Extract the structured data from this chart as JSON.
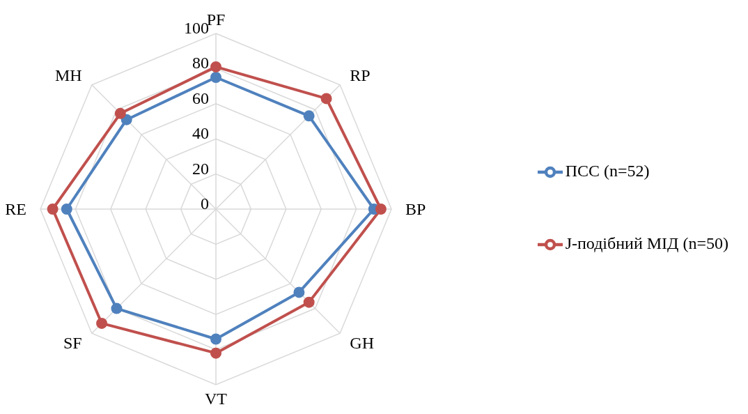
{
  "chart_data": {
    "type": "radar",
    "categories": [
      "PF",
      "RP",
      "BP",
      "GH",
      "VT",
      "SF",
      "RE",
      "MH"
    ],
    "series": [
      {
        "name": "ПСС (n=52)",
        "color": "#4f81bd",
        "values": [
          75,
          75,
          90,
          67,
          74,
          80,
          85,
          72
        ]
      },
      {
        "name": "J-подібний МІД (n=50)",
        "color": "#c0504d",
        "values": [
          81,
          89,
          94,
          75,
          82,
          92,
          93,
          77
        ]
      }
    ],
    "ylim": [
      0,
      100
    ],
    "yticks": [
      0,
      20,
      40,
      60,
      80,
      100
    ],
    "grid": true,
    "legend": "right",
    "marker": "circle",
    "line_style": "solid"
  }
}
